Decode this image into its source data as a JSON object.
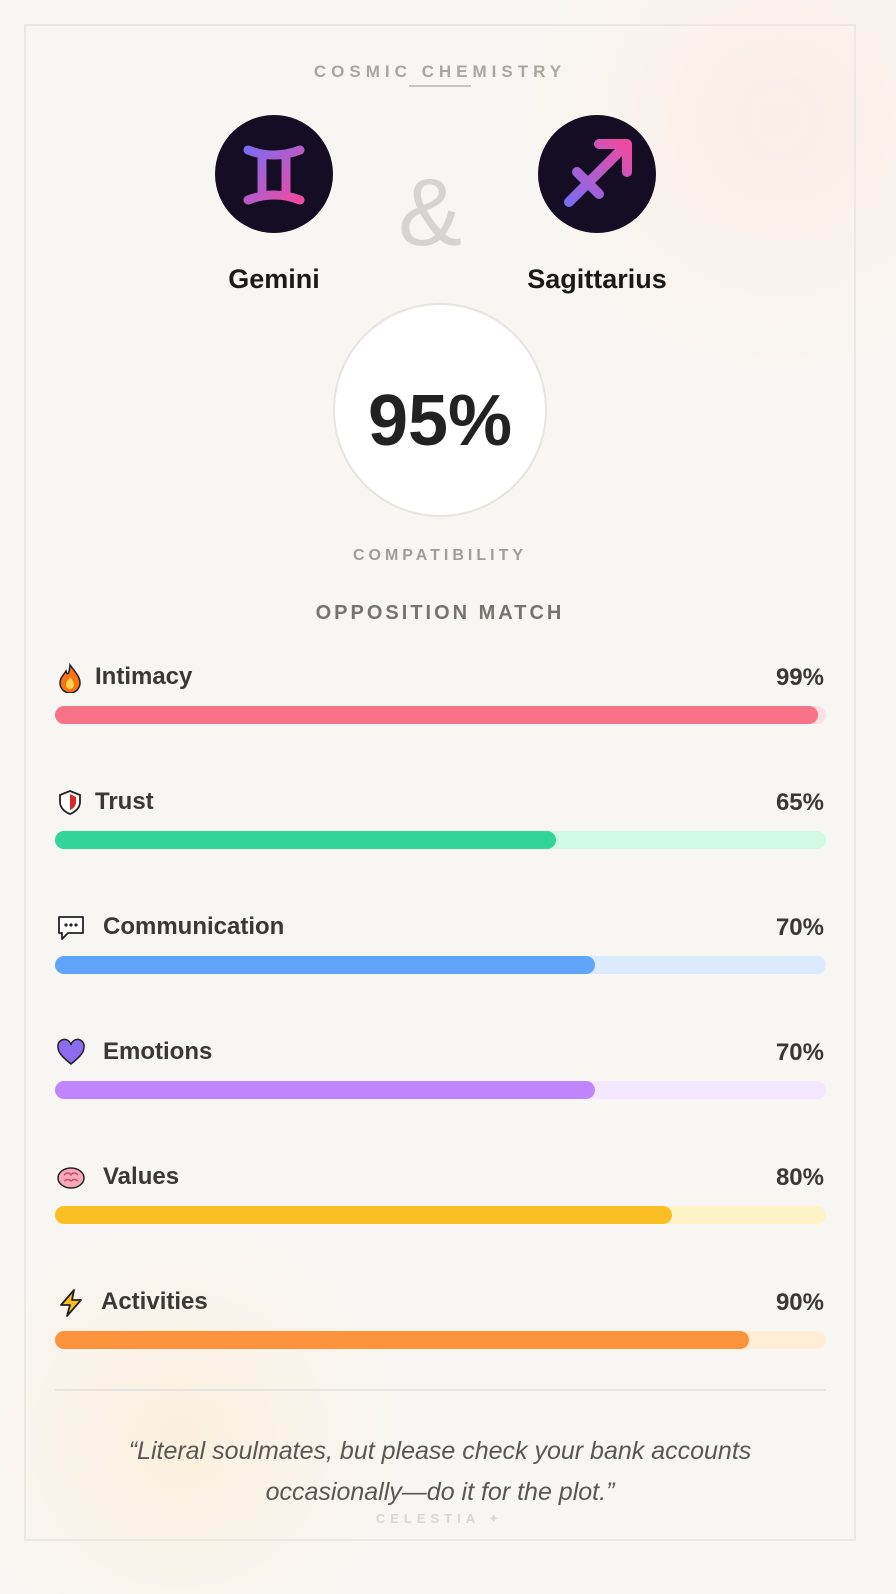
{
  "header": {
    "title": "COSMIC CHEMISTRY"
  },
  "pair": {
    "left": "Gemini",
    "joiner": "&",
    "right": "Sagittarius"
  },
  "score": {
    "value": "95%",
    "caption": "COMPATIBILITY"
  },
  "match_type": "OPPOSITION MATCH",
  "range": [
    0,
    100
  ],
  "metrics": [
    {
      "name": "Intimacy",
      "value": 99,
      "label": "99%",
      "color": "#f87287",
      "track": "#fde0e4"
    },
    {
      "name": "Trust",
      "value": 65,
      "label": "65%",
      "color": "#34d399",
      "track": "#d1fae5"
    },
    {
      "name": "Communication",
      "value": 70,
      "label": "70%",
      "color": "#60a5fa",
      "track": "#dbeafe"
    },
    {
      "name": "Emotions",
      "value": 70,
      "label": "70%",
      "color": "#c084fc",
      "track": "#f3e8ff"
    },
    {
      "name": "Values",
      "value": 80,
      "label": "80%",
      "color": "#fbbf24",
      "track": "#fef3c7"
    },
    {
      "name": "Activities",
      "value": 90,
      "label": "90%",
      "color": "#fb923c",
      "track": "#ffedd5"
    }
  ],
  "quote": "“Literal soulmates, but please check your bank accounts occasionally—do it for the plot.”",
  "footer": "CELESTIA ✦"
}
